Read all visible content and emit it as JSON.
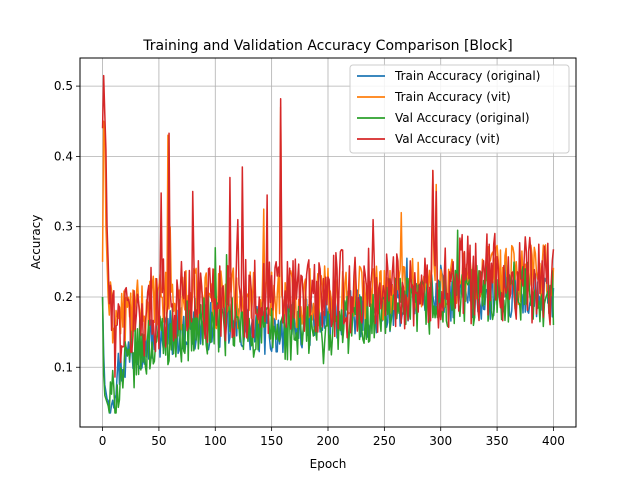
{
  "chart_data": {
    "type": "line",
    "title": "Training and Validation Accuracy Comparison [Block]",
    "xlabel": "Epoch",
    "ylabel": "Accuracy",
    "xlim": [
      -20,
      420
    ],
    "ylim": [
      0.015,
      0.54
    ],
    "xticks": [
      0,
      50,
      100,
      150,
      200,
      250,
      300,
      350,
      400
    ],
    "xtick_labels": [
      "0",
      "50",
      "100",
      "150",
      "200",
      "250",
      "300",
      "350",
      "400"
    ],
    "yticks": [
      0.1,
      0.2,
      0.3,
      0.4,
      0.5
    ],
    "ytick_labels": [
      "0.1",
      "0.2",
      "0.3",
      "0.4",
      "0.5"
    ],
    "grid": true,
    "legend_position": "top-right",
    "series": [
      {
        "name": "Train Accuracy (original)",
        "color": "#1f77b4",
        "base": [
          [
            0,
            0.2
          ],
          [
            1,
            0.12
          ],
          [
            2,
            0.075
          ],
          [
            4,
            0.055
          ],
          [
            6,
            0.05
          ],
          [
            8,
            0.065
          ],
          [
            15,
            0.1
          ],
          [
            30,
            0.13
          ],
          [
            60,
            0.15
          ],
          [
            100,
            0.16
          ],
          [
            150,
            0.15
          ],
          [
            200,
            0.17
          ],
          [
            250,
            0.18
          ],
          [
            275,
            0.2
          ],
          [
            300,
            0.2
          ],
          [
            350,
            0.2
          ],
          [
            400,
            0.2
          ]
        ],
        "noise": 0.035,
        "spikes": [
          [
            100,
            0.23
          ],
          [
            270,
            0.255
          ],
          [
            300,
            0.245
          ],
          [
            358,
            0.25
          ]
        ]
      },
      {
        "name": "Train Accuracy (vit)",
        "color": "#ff7f0e",
        "base": [
          [
            0,
            0.25
          ],
          [
            1,
            0.45
          ],
          [
            2,
            0.44
          ],
          [
            3,
            0.3
          ],
          [
            5,
            0.2
          ],
          [
            8,
            0.17
          ],
          [
            15,
            0.17
          ],
          [
            50,
            0.19
          ],
          [
            100,
            0.2
          ],
          [
            150,
            0.2
          ],
          [
            200,
            0.2
          ],
          [
            250,
            0.21
          ],
          [
            300,
            0.22
          ],
          [
            350,
            0.23
          ],
          [
            400,
            0.23
          ]
        ],
        "noise": 0.045,
        "spikes": [
          [
            58,
            0.43
          ],
          [
            60,
            0.3
          ],
          [
            143,
            0.325
          ],
          [
            158,
            0.47
          ],
          [
            265,
            0.32
          ],
          [
            293,
            0.38
          ],
          [
            296,
            0.36
          ]
        ]
      },
      {
        "name": "Val Accuracy (original)",
        "color": "#2ca02c",
        "base": [
          [
            0,
            0.2
          ],
          [
            1,
            0.09
          ],
          [
            2,
            0.06
          ],
          [
            5,
            0.045
          ],
          [
            8,
            0.05
          ],
          [
            15,
            0.08
          ],
          [
            30,
            0.12
          ],
          [
            60,
            0.15
          ],
          [
            100,
            0.16
          ],
          [
            150,
            0.15
          ],
          [
            200,
            0.15
          ],
          [
            250,
            0.18
          ],
          [
            300,
            0.19
          ],
          [
            350,
            0.21
          ],
          [
            400,
            0.2
          ]
        ],
        "noise": 0.045,
        "spikes": [
          [
            100,
            0.27
          ],
          [
            110,
            0.26
          ],
          [
            315,
            0.295
          ],
          [
            340,
            0.245
          ],
          [
            375,
            0.24
          ]
        ]
      },
      {
        "name": "Val Accuracy (vit)",
        "color": "#d62728",
        "base": [
          [
            0,
            0.44
          ],
          [
            1,
            0.515
          ],
          [
            2,
            0.46
          ],
          [
            3,
            0.41
          ],
          [
            4,
            0.3
          ],
          [
            6,
            0.2
          ],
          [
            10,
            0.15
          ],
          [
            20,
            0.16
          ],
          [
            50,
            0.19
          ],
          [
            100,
            0.2
          ],
          [
            150,
            0.2
          ],
          [
            200,
            0.2
          ],
          [
            250,
            0.21
          ],
          [
            300,
            0.22
          ],
          [
            350,
            0.23
          ],
          [
            400,
            0.22
          ]
        ],
        "noise": 0.065,
        "spikes": [
          [
            59,
            0.433
          ],
          [
            52,
            0.348
          ],
          [
            80,
            0.35
          ],
          [
            113,
            0.37
          ],
          [
            124,
            0.385
          ],
          [
            120,
            0.31
          ],
          [
            158,
            0.482
          ],
          [
            146,
            0.345
          ],
          [
            240,
            0.31
          ],
          [
            293,
            0.38
          ],
          [
            296,
            0.35
          ]
        ]
      }
    ]
  }
}
